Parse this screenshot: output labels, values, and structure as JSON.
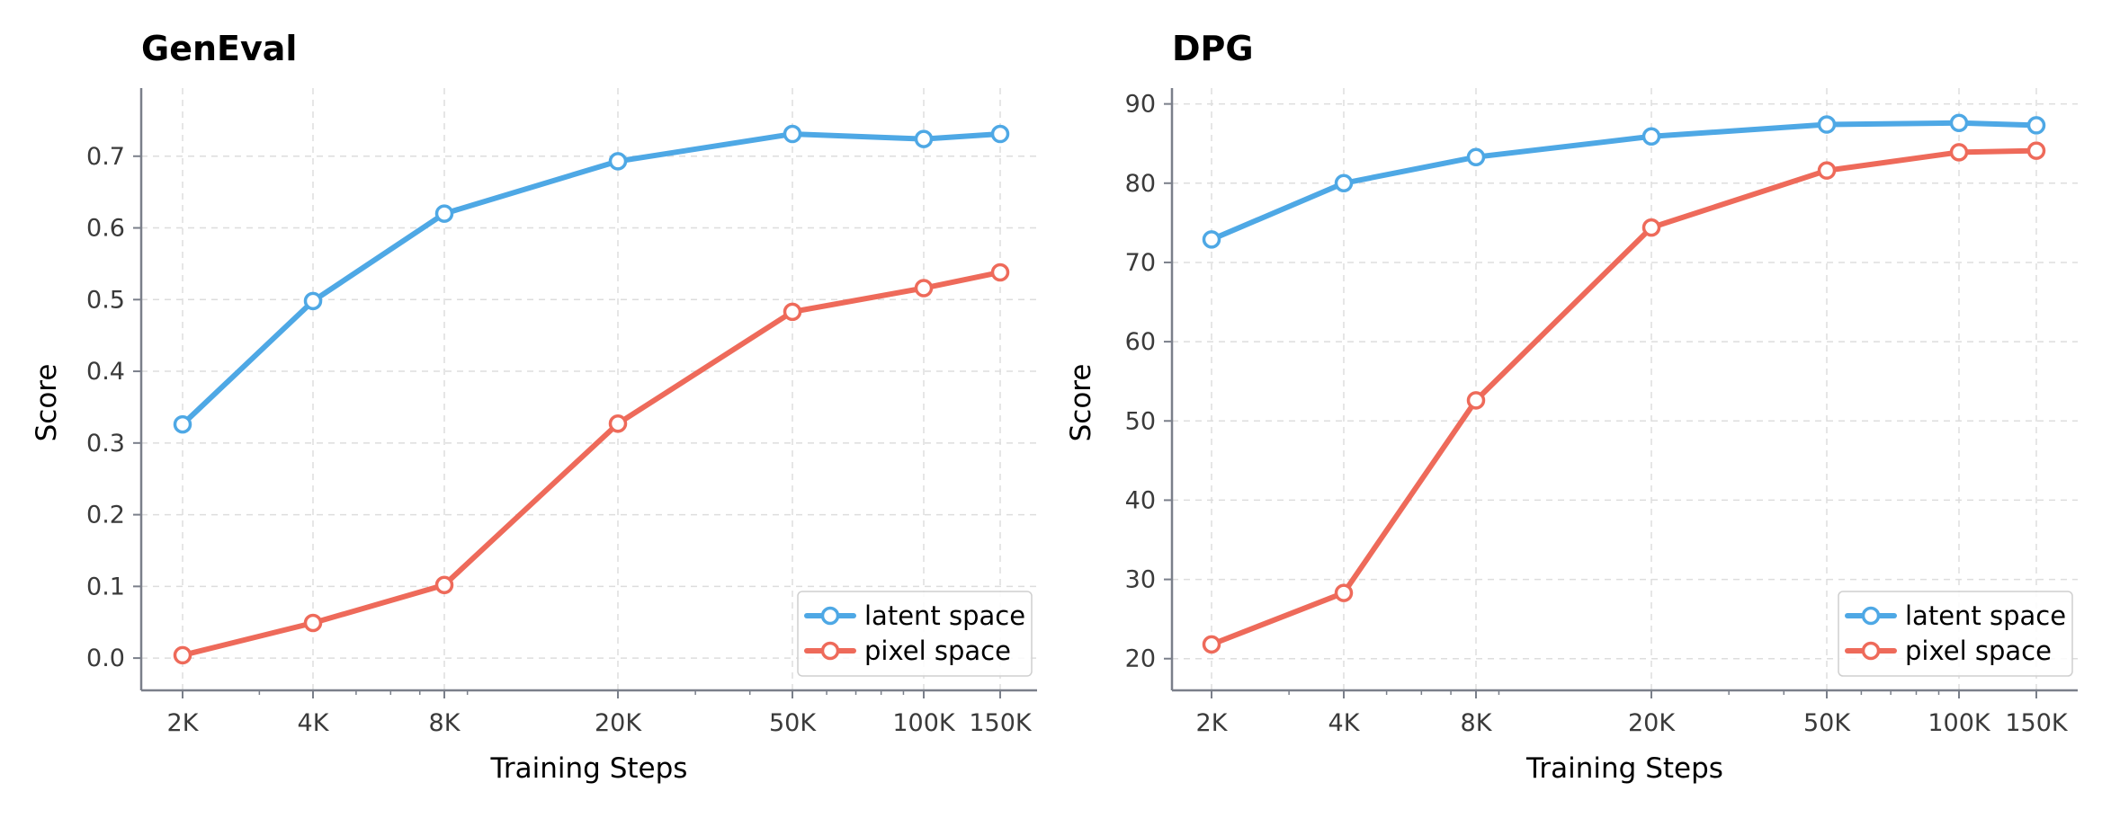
{
  "colors": {
    "latent": "#4ea8e5",
    "pixel": "#ee6a5a",
    "grid": "#dddddd",
    "axis": "#7a7f8a"
  },
  "chart_data": [
    {
      "type": "line",
      "title": "GenEval",
      "xlabel": "Training Steps",
      "ylabel": "Score",
      "x_scale": "log",
      "x": [
        2000,
        4000,
        8000,
        20000,
        50000,
        100000,
        150000
      ],
      "x_tick_labels": [
        "2K",
        "4K",
        "8K",
        "20K",
        "50K",
        "100K",
        "150K"
      ],
      "ylim": [
        -0.045,
        0.795
      ],
      "yticks": [
        0.0,
        0.1,
        0.2,
        0.3,
        0.4,
        0.5,
        0.6,
        0.7
      ],
      "y_tick_labels": [
        "0.0",
        "0.1",
        "0.2",
        "0.3",
        "0.4",
        "0.5",
        "0.6",
        "0.7"
      ],
      "grid": true,
      "legend_position": "lower-right",
      "series": [
        {
          "name": "latent space",
          "values": [
            0.326,
            0.498,
            0.62,
            0.693,
            0.731,
            0.724,
            0.731
          ]
        },
        {
          "name": "pixel space",
          "values": [
            0.004,
            0.049,
            0.102,
            0.327,
            0.483,
            0.516,
            0.538
          ]
        }
      ]
    },
    {
      "type": "line",
      "title": "DPG",
      "xlabel": "Training Steps",
      "ylabel": "Score",
      "x_scale": "log",
      "x": [
        2000,
        4000,
        8000,
        20000,
        50000,
        100000,
        150000
      ],
      "x_tick_labels": [
        "2K",
        "4K",
        "8K",
        "20K",
        "50K",
        "100K",
        "150K"
      ],
      "ylim": [
        16,
        92
      ],
      "yticks": [
        20,
        30,
        40,
        50,
        60,
        70,
        80,
        90
      ],
      "y_tick_labels": [
        "20",
        "30",
        "40",
        "50",
        "60",
        "70",
        "80",
        "90"
      ],
      "grid": true,
      "legend_position": "lower-right",
      "series": [
        {
          "name": "latent space",
          "values": [
            72.9,
            80.0,
            83.3,
            85.9,
            87.4,
            87.6,
            87.3
          ]
        },
        {
          "name": "pixel space",
          "values": [
            21.8,
            28.3,
            52.6,
            74.4,
            81.6,
            83.9,
            84.1
          ]
        }
      ]
    }
  ]
}
